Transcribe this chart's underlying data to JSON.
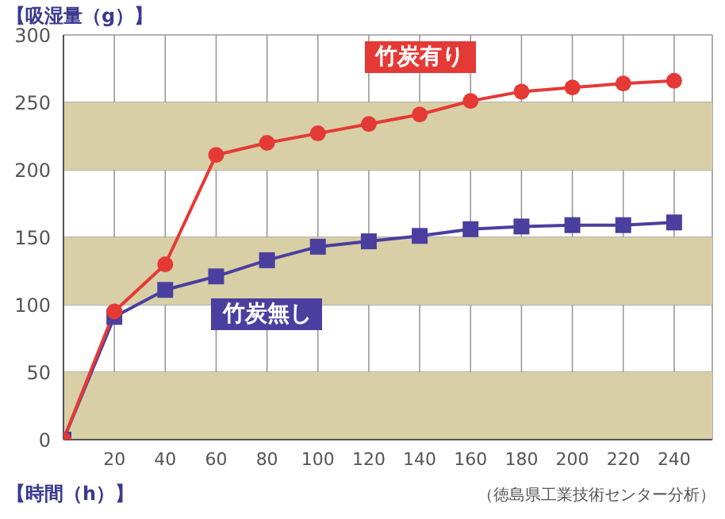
{
  "chart_data": {
    "type": "line",
    "ylabel": "【吸湿量（g）】",
    "xlabel": "【時間（h）】",
    "annotations": [
      "（徳島県工業技術センター分析）"
    ],
    "x": [
      0,
      20,
      40,
      60,
      80,
      100,
      120,
      140,
      160,
      180,
      200,
      220,
      240
    ],
    "series": [
      {
        "name": "竹炭有り",
        "color": "#e53935",
        "marker": "circle",
        "values": [
          0,
          95,
          130,
          211,
          220,
          227,
          234,
          241,
          251,
          258,
          261,
          264,
          266
        ]
      },
      {
        "name": "竹炭無し",
        "color": "#4a3f9f",
        "marker": "square",
        "values": [
          0,
          91,
          111,
          121,
          133,
          143,
          147,
          151,
          156,
          158,
          159,
          159,
          161
        ]
      }
    ],
    "xlim": [
      0,
      255
    ],
    "xticks": [
      20,
      40,
      60,
      80,
      100,
      120,
      140,
      160,
      180,
      200,
      220,
      240
    ],
    "ylim": [
      0,
      300
    ],
    "yticks": [
      0,
      50,
      100,
      150,
      200,
      250,
      300
    ],
    "bands": [
      {
        "axis": "y",
        "from": 0,
        "to": 50,
        "color": "#d8cfa6"
      },
      {
        "axis": "y",
        "from": 100,
        "to": 150,
        "color": "#d8cfa6"
      },
      {
        "axis": "y",
        "from": 200,
        "to": 250,
        "color": "#d8cfa6"
      }
    ],
    "grid": true
  }
}
